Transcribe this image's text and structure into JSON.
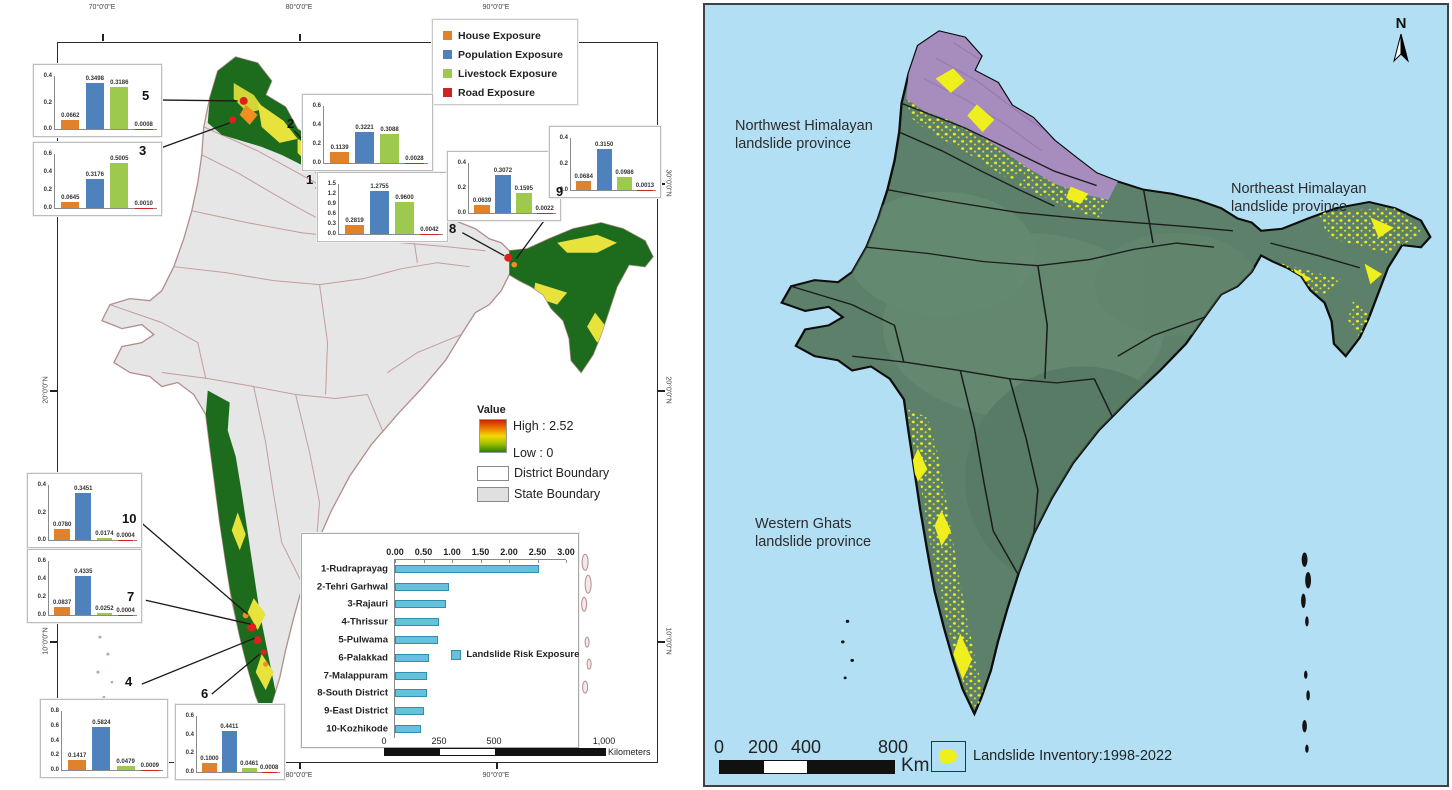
{
  "colors": {
    "house_exposure": "#e0812c",
    "population_exposure": "#4f81bd",
    "livestock_exposure": "#9cc94e",
    "road_exposure": "#cf2420",
    "risk_bar": "#66c2dc",
    "ramp_high": "#cc2200",
    "ramp_low": "#2e7d00",
    "inventory_yellow": "#efef1d",
    "sea_blue": "#b3dff5",
    "province_purple": "#a78cbe",
    "land_green": "#5c8069"
  },
  "left_map": {
    "axis": {
      "top": [
        "70°0'0\"E",
        "80°0'0\"E",
        "90°0'0\"E"
      ],
      "bottom": [
        "70°0'0\"E",
        "80°0'0\"E",
        "90°0'0\"E"
      ],
      "left": [
        "30°0'0\"N",
        "20°0'0\"N",
        "10°0'0\"N"
      ],
      "right": [
        "30°0'0\"N",
        "20°0'0\"N",
        "10°0'0\"N"
      ]
    },
    "exposure_legend": {
      "items": [
        {
          "label": "House Exposure",
          "color": "#e0812c"
        },
        {
          "label": "Population Exposure",
          "color": "#4f81bd"
        },
        {
          "label": "Livestock Exposure",
          "color": "#9cc94e"
        },
        {
          "label": "Road Exposure",
          "color": "#cf2420"
        }
      ]
    },
    "value_legend": {
      "title": "Value",
      "high_label": "High : 2.52",
      "low_label": "Low : 0",
      "district_label": "District Boundary",
      "state_label": "State Boundary"
    },
    "callout_numbers": [
      "5",
      "3",
      "2",
      "1",
      "8",
      "9",
      "10",
      "7",
      "4",
      "6"
    ],
    "scalebar": {
      "ticks": [
        "0",
        "250",
        "500",
        "1,000"
      ],
      "unit": "Kilometers"
    }
  },
  "right_map": {
    "north_label": "N",
    "province_labels": {
      "northwest": "Northwest Himalayan\nlandslide province",
      "northeast": "Northeast Himalayan\nlandslide province",
      "western": "Western Ghats\nlandslide province"
    },
    "scalebar": {
      "ticks": [
        "0",
        "200",
        "400",
        "800"
      ],
      "unit": "Km"
    },
    "legend": {
      "label": "Landslide Inventory:1998-2022"
    }
  },
  "chart_data": [
    {
      "type": "bar",
      "district_number": "1",
      "district": "Rudraprayag",
      "categories": [
        "House Exposure",
        "Population Exposure",
        "Livestock Exposure",
        "Road Exposure"
      ],
      "values": [
        0.2819,
        1.2755,
        0.96,
        0.0042
      ],
      "labels": [
        "0.2819",
        "1.2755",
        "0.9600",
        "0.0042"
      ],
      "ticks": [
        "1.5",
        "1.2",
        "0.9",
        "0.6",
        "0.3",
        "0.0"
      ],
      "ymax": 1.5
    },
    {
      "type": "bar",
      "district_number": "2",
      "district": "Tehri Garhwal",
      "categories": [
        "House Exposure",
        "Population Exposure",
        "Livestock Exposure",
        "Road Exposure"
      ],
      "values": [
        0.1139,
        0.3221,
        0.3088,
        0.0028
      ],
      "labels": [
        "0.1139",
        "0.3221",
        "0.3088",
        "0.0028"
      ],
      "ticks": [
        "0.6",
        "0.4",
        "0.2",
        "0.0"
      ],
      "ymax": 0.6
    },
    {
      "type": "bar",
      "district_number": "3",
      "district": "Rajauri",
      "categories": [
        "House Exposure",
        "Population Exposure",
        "Livestock Exposure",
        "Road Exposure"
      ],
      "values": [
        0.0645,
        0.3176,
        0.5005,
        0.001
      ],
      "labels": [
        "0.0645",
        "0.3176",
        "0.5005",
        "0.0010"
      ],
      "ticks": [
        "0.6",
        "0.4",
        "0.2",
        "0.0"
      ],
      "ymax": 0.6
    },
    {
      "type": "bar",
      "district_number": "4",
      "district": "Thrissur",
      "categories": [
        "House Exposure",
        "Population Exposure",
        "Livestock Exposure",
        "Road Exposure"
      ],
      "values": [
        0.1417,
        0.5824,
        0.0479,
        0.0009
      ],
      "labels": [
        "0.1417",
        "0.5824",
        "0.0479",
        "0.0009"
      ],
      "ticks": [
        "0.8",
        "0.6",
        "0.4",
        "0.2",
        "0.0"
      ],
      "ymax": 0.8
    },
    {
      "type": "bar",
      "district_number": "5",
      "district": "Pulwama",
      "categories": [
        "House Exposure",
        "Population Exposure",
        "Livestock Exposure",
        "Road Exposure"
      ],
      "values": [
        0.0662,
        0.3498,
        0.3186,
        0.0008
      ],
      "labels": [
        "0.0662",
        "0.3498",
        "0.3186",
        "0.0008"
      ],
      "ticks": [
        "0.4",
        "0.2",
        "0.0"
      ],
      "ymax": 0.4
    },
    {
      "type": "bar",
      "district_number": "6",
      "district": "Palakkad",
      "categories": [
        "House Exposure",
        "Population Exposure",
        "Livestock Exposure",
        "Road Exposure"
      ],
      "values": [
        0.1,
        0.4411,
        0.0461,
        0.0008
      ],
      "labels": [
        "0.1000",
        "0.4411",
        "0.0461",
        "0.0008"
      ],
      "ticks": [
        "0.6",
        "0.4",
        "0.2",
        "0.0"
      ],
      "ymax": 0.6
    },
    {
      "type": "bar",
      "district_number": "7",
      "district": "Malappuram",
      "categories": [
        "House Exposure",
        "Population Exposure",
        "Livestock Exposure",
        "Road Exposure"
      ],
      "values": [
        0.0837,
        0.4335,
        0.0252,
        0.0004
      ],
      "labels": [
        "0.0837",
        "0.4335",
        "0.0252",
        "0.0004"
      ],
      "ticks": [
        "0.6",
        "0.4",
        "0.2",
        "0.0"
      ],
      "ymax": 0.6
    },
    {
      "type": "bar",
      "district_number": "8",
      "district": "South District",
      "categories": [
        "House Exposure",
        "Population Exposure",
        "Livestock Exposure",
        "Road Exposure"
      ],
      "values": [
        0.0639,
        0.3072,
        0.1595,
        0.0022
      ],
      "labels": [
        "0.0639",
        "0.3072",
        "0.1595",
        "0.0022"
      ],
      "ticks": [
        "0.4",
        "0.2",
        "0.0"
      ],
      "ymax": 0.4
    },
    {
      "type": "bar",
      "district_number": "9",
      "district": "East District",
      "categories": [
        "House Exposure",
        "Population Exposure",
        "Livestock Exposure",
        "Road Exposure"
      ],
      "values": [
        0.0684,
        0.315,
        0.0986,
        0.0013
      ],
      "labels": [
        "0.0684",
        "0.3150",
        "0.0986",
        "0.0013"
      ],
      "ticks": [
        "0.4",
        "0.2",
        "0.0"
      ],
      "ymax": 0.4
    },
    {
      "type": "bar",
      "district_number": "10",
      "district": "Kozhikode",
      "categories": [
        "House Exposure",
        "Population Exposure",
        "Livestock Exposure",
        "Road Exposure"
      ],
      "values": [
        0.078,
        0.3451,
        0.0174,
        0.0004
      ],
      "labels": [
        "0.0780",
        "0.3451",
        "0.0174",
        "0.0004"
      ],
      "ticks": [
        "0.4",
        "0.2",
        "0.0"
      ],
      "ymax": 0.4
    },
    {
      "type": "bar",
      "orientation": "horizontal",
      "legend": "Landslide Risk Exposure",
      "bar_color": "#66c2dc",
      "categories": [
        "1-Rudraprayag",
        "2-Tehri Garhwal",
        "3-Rajauri",
        "4-Thrissur",
        "5-Pulwama",
        "6-Palakkad",
        "7-Malappuram",
        "8-South District",
        "9-East District",
        "10-Kozhikode"
      ],
      "values": [
        2.52,
        0.94,
        0.89,
        0.78,
        0.75,
        0.6,
        0.57,
        0.56,
        0.51,
        0.46
      ],
      "x_ticks": [
        "0.00",
        "0.50",
        "1.00",
        "1.50",
        "2.00",
        "2.50",
        "3.00"
      ],
      "xmax": 3.0,
      "xlim": [
        0,
        3
      ]
    }
  ]
}
